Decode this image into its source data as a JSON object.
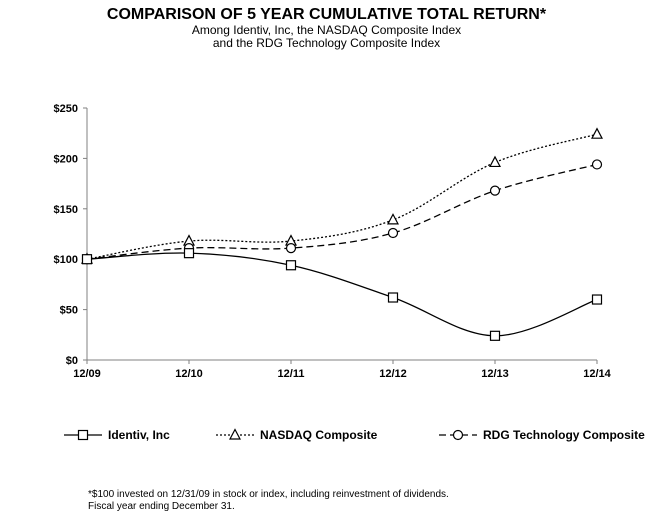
{
  "chart_data": {
    "type": "line",
    "title": "COMPARISON OF 5 YEAR CUMULATIVE TOTAL RETURN*",
    "subtitle": [
      "Among Identiv, Inc, the NASDAQ Composite Index",
      "and the RDG Technology Composite Index"
    ],
    "xlabel": "",
    "ylabel": "",
    "categories": [
      "12/09",
      "12/10",
      "12/11",
      "12/12",
      "12/13",
      "12/14"
    ],
    "ylim": [
      0,
      250
    ],
    "yticks": [
      0,
      50,
      100,
      150,
      200,
      250
    ],
    "ytick_labels": [
      "$0",
      "$50",
      "$100",
      "$150",
      "$200",
      "$250"
    ],
    "grid": false,
    "legend_position": "bottom",
    "series": [
      {
        "name": "Identiv, Inc",
        "marker": "square",
        "line_style": "solid",
        "values": [
          100,
          106,
          94,
          62,
          24,
          60
        ]
      },
      {
        "name": "NASDAQ Composite",
        "marker": "triangle",
        "line_style": "dotted",
        "values": [
          100,
          118,
          118,
          139,
          196,
          224
        ]
      },
      {
        "name": "RDG Technology Composite",
        "marker": "circle",
        "line_style": "dashed",
        "values": [
          100,
          111,
          111,
          126,
          168,
          194
        ]
      }
    ],
    "footnotes": [
      "*$100 invested on 12/31/09 in stock or index, including reinvestment of dividends.",
      "Fiscal year ending December 31."
    ]
  }
}
